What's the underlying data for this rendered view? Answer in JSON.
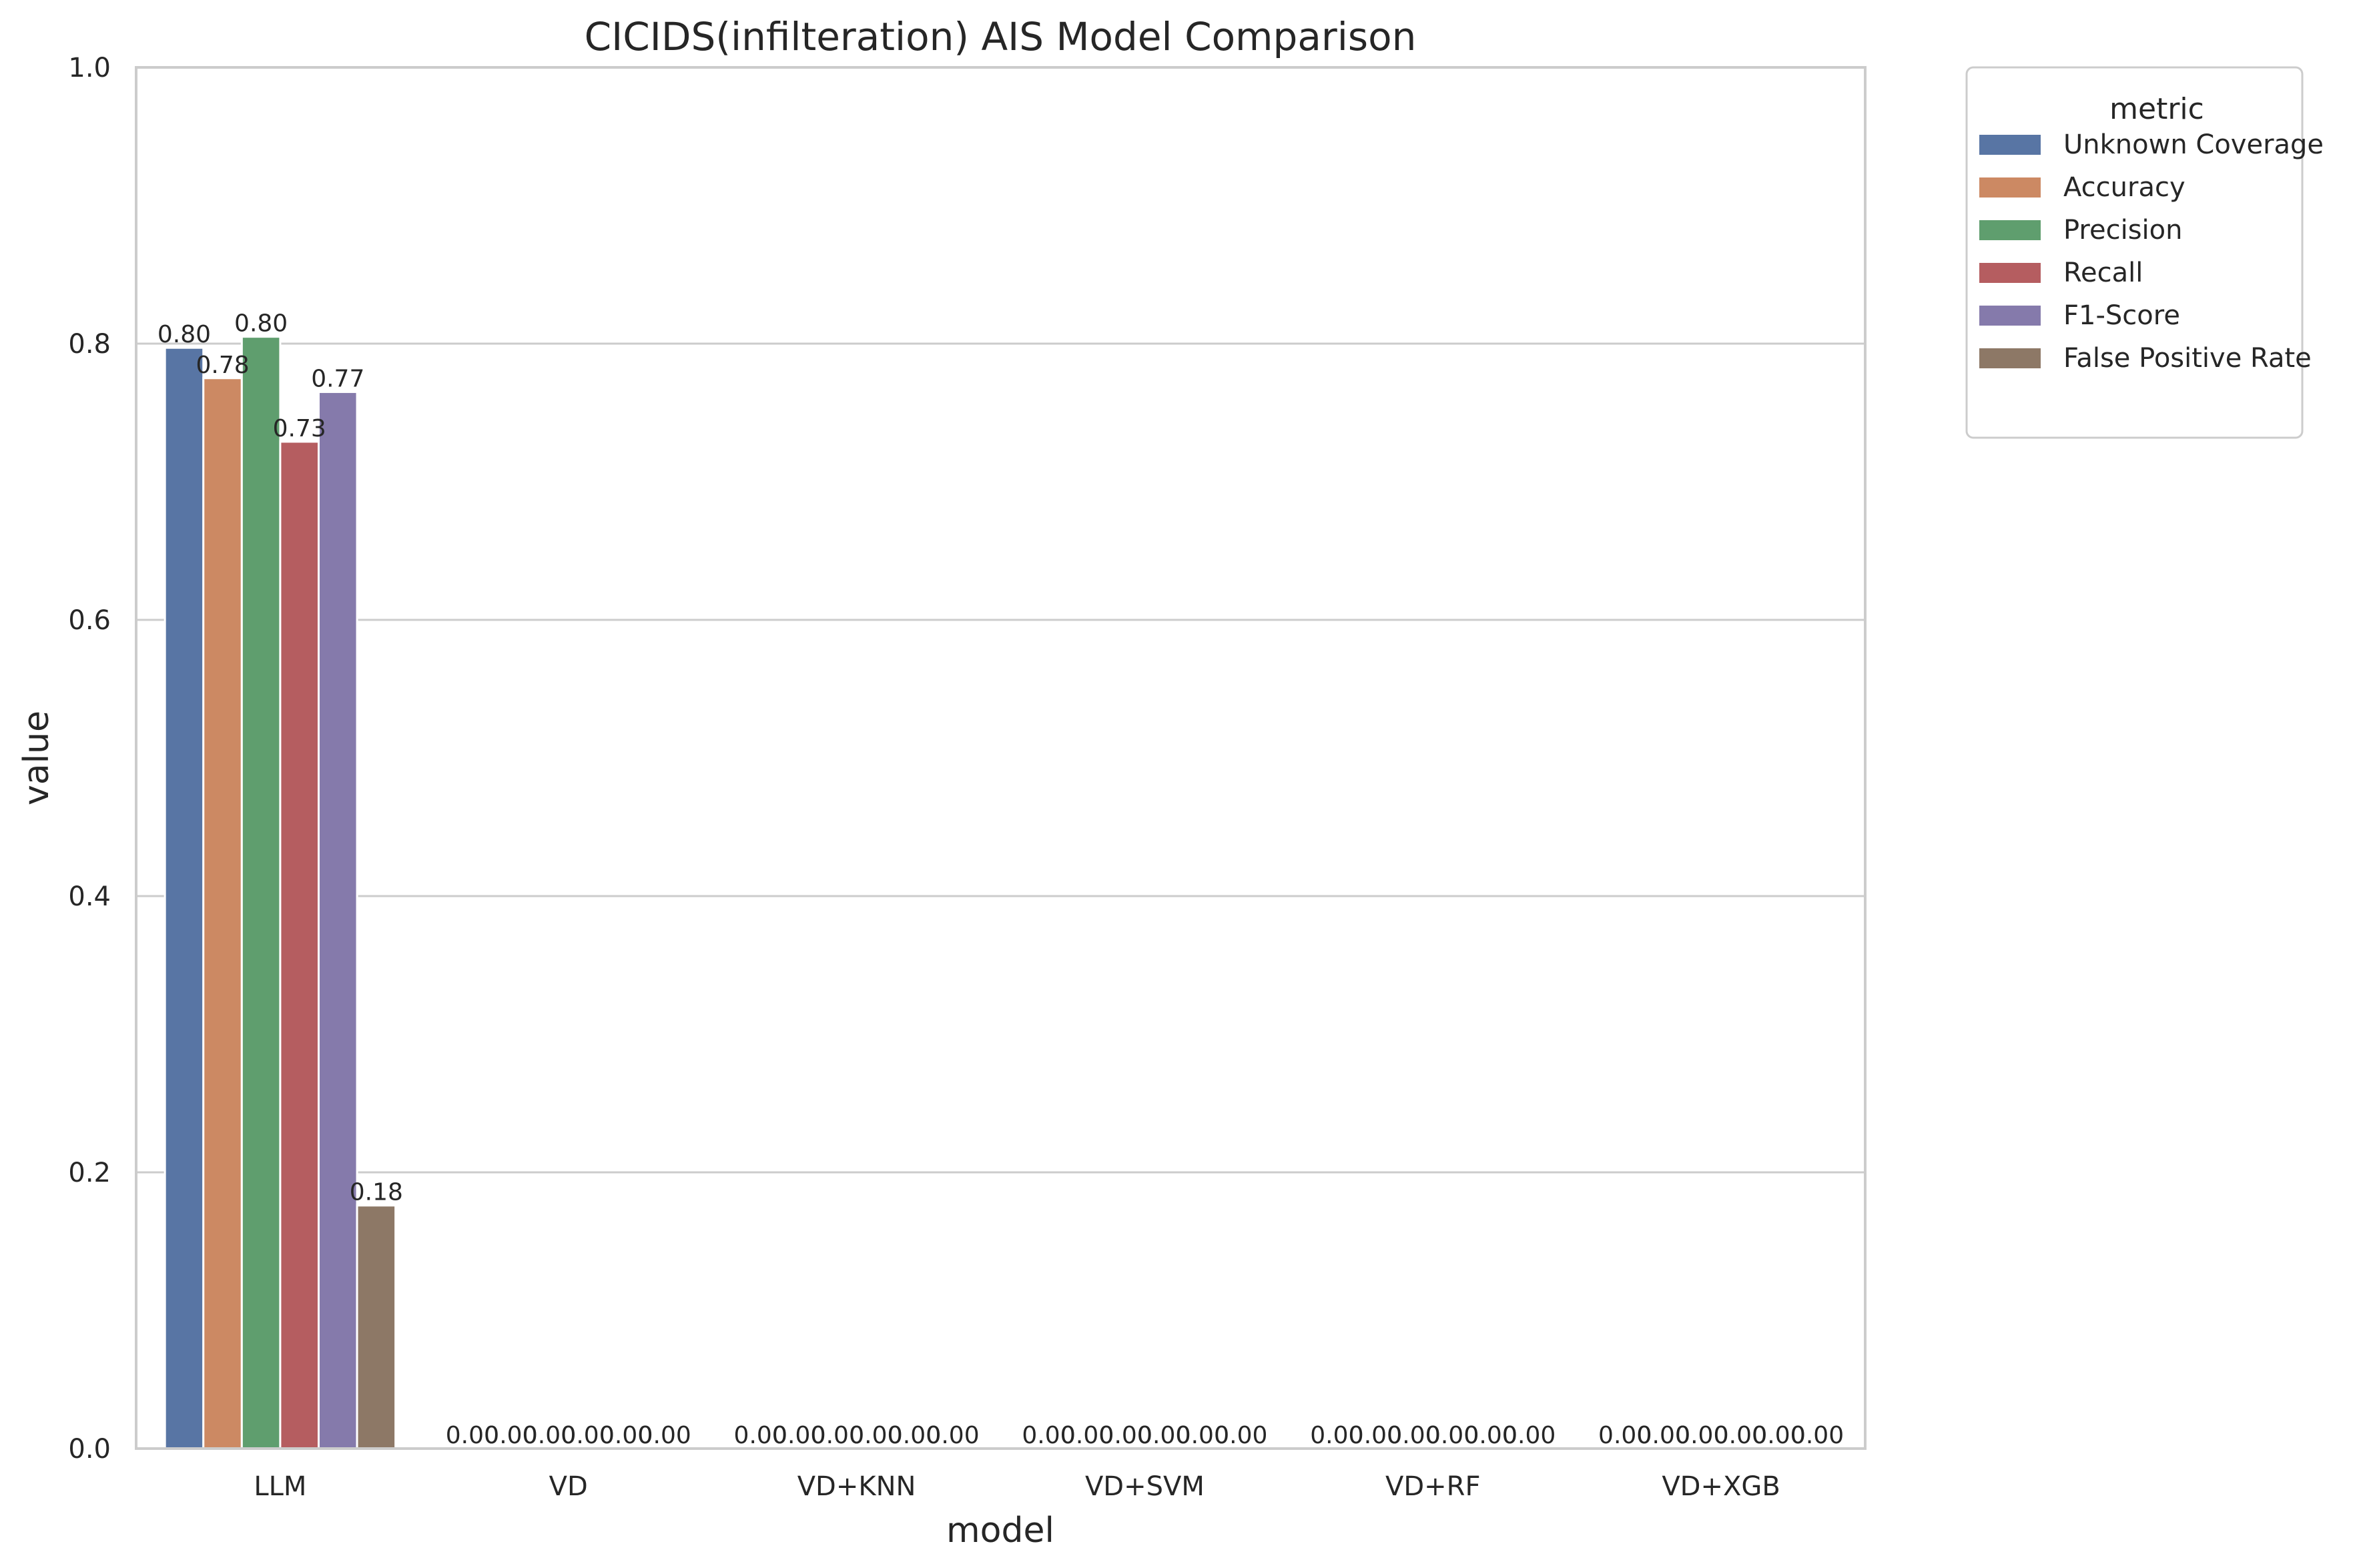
{
  "chart_data": {
    "type": "bar",
    "title": "CICIDS(infilteration) AIS Model Comparison",
    "xlabel": "model",
    "ylabel": "value",
    "ylim": [
      0,
      1.0
    ],
    "yticks": [
      "0.0",
      "0.2",
      "0.4",
      "0.6",
      "0.8",
      "1.0"
    ],
    "grid": "horizontal",
    "legend_title": "metric",
    "legend_position": "outside-top-right",
    "categories": [
      "LLM",
      "VD",
      "VD+KNN",
      "VD+SVM",
      "VD+RF",
      "VD+XGB"
    ],
    "series": [
      {
        "name": "Unknown Coverage",
        "color": "#5875a4",
        "values": [
          0.797,
          0,
          0,
          0,
          0,
          0
        ],
        "labels": [
          "0.80",
          "0.00",
          "0.00",
          "0.00",
          "0.00",
          "0.00"
        ]
      },
      {
        "name": "Accuracy",
        "color": "#cc8963",
        "values": [
          0.775,
          0,
          0,
          0,
          0,
          0
        ],
        "labels": [
          "0.78",
          "0.00",
          "0.00",
          "0.00",
          "0.00",
          "0.00"
        ]
      },
      {
        "name": "Precision",
        "color": "#5f9e6e",
        "values": [
          0.805,
          0,
          0,
          0,
          0,
          0
        ],
        "labels": [
          "0.80",
          "0.00",
          "0.00",
          "0.00",
          "0.00",
          "0.00"
        ]
      },
      {
        "name": "Recall",
        "color": "#b55d60",
        "values": [
          0.729,
          0,
          0,
          0,
          0,
          0
        ],
        "labels": [
          "0.73",
          "0.00",
          "0.00",
          "0.00",
          "0.00",
          "0.00"
        ]
      },
      {
        "name": "F1-Score",
        "color": "#857aab",
        "values": [
          0.765,
          0,
          0,
          0,
          0,
          0
        ],
        "labels": [
          "0.77",
          "0.00",
          "0.00",
          "0.00",
          "0.00",
          "0.00"
        ]
      },
      {
        "name": "False Positive Rate",
        "color": "#8d7866",
        "values": [
          0.176,
          0,
          0,
          0,
          0,
          0
        ],
        "labels": [
          "0.18",
          "0.00",
          "0.00",
          "0.00",
          "0.00",
          "0.00"
        ]
      }
    ]
  }
}
